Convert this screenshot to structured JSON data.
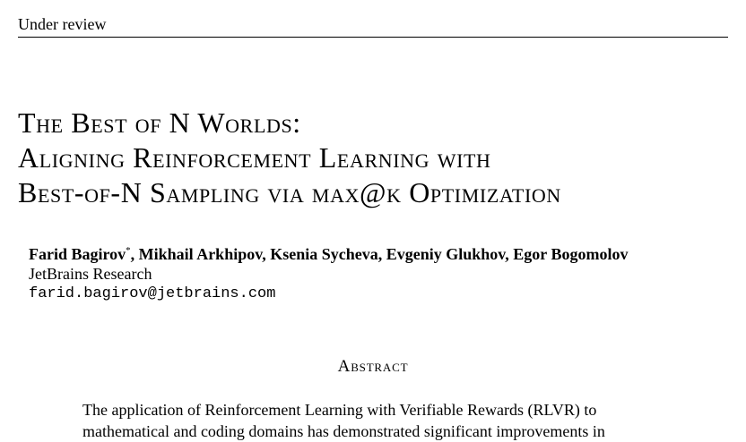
{
  "header": {
    "running_head": "Under review"
  },
  "title": {
    "lines": [
      "The Best of N Worlds:",
      "Aligning Reinforcement Learning with",
      "Best-of-N Sampling via max@k Optimization"
    ]
  },
  "authors": {
    "first_author": "Farid Bagirov",
    "first_author_mark": "*",
    "other_authors": ", Mikhail Arkhipov, Ksenia Sycheva, Evgeniy Glukhov, Egor Bogomolov",
    "affiliation": "JetBrains Research",
    "email": "farid.bagirov@jetbrains.com"
  },
  "abstract": {
    "heading": "Abstract",
    "lines": [
      "The application of Reinforcement Learning with Verifiable Rewards (RLVR) to",
      "mathematical and coding domains has demonstrated significant improvements in"
    ]
  }
}
